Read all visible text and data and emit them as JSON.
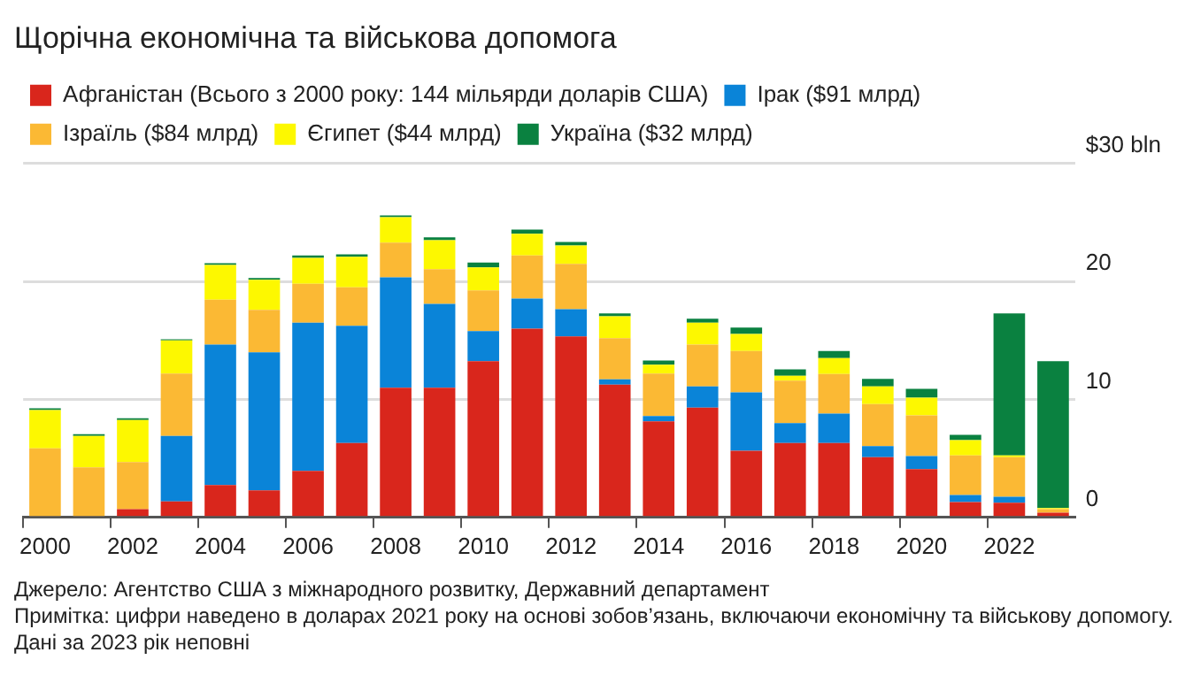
{
  "chart_data": {
    "type": "bar",
    "stacked": true,
    "title": "Щорічна економічна та військова допомога",
    "categories": [
      "2000",
      null,
      "2002",
      null,
      "2004",
      null,
      "2006",
      null,
      "2008",
      null,
      "2010",
      null,
      "2012",
      null,
      "2014",
      null,
      "2016",
      null,
      "2018",
      null,
      "2020",
      null,
      "2022",
      null
    ],
    "series": [
      {
        "name": "Афганістан (Всього з 2000 року: 144 мільярди доларів США)",
        "color": "#d9261c",
        "values": [
          0,
          0,
          0.7,
          1.35,
          2.75,
          2.3,
          3.95,
          6.3,
          11.0,
          11.0,
          13.25,
          16.0,
          15.35,
          11.25,
          8.15,
          9.3,
          5.65,
          6.3,
          6.3,
          5.1,
          4.1,
          1.3,
          1.25,
          0.4
        ]
      },
      {
        "name": "Ірак ($91 млрд)",
        "color": "#0a84d8",
        "values": [
          0,
          0,
          0,
          5.55,
          11.9,
          11.7,
          12.55,
          9.95,
          9.35,
          7.1,
          2.55,
          2.55,
          2.3,
          0.45,
          0.45,
          1.8,
          4.95,
          1.7,
          2.5,
          0.95,
          1.1,
          0.6,
          0.5,
          0
        ]
      },
      {
        "name": "Ізраїль ($84 млрд)",
        "color": "#fbb934",
        "values": [
          5.85,
          4.25,
          4.0,
          5.3,
          3.8,
          3.6,
          3.3,
          3.25,
          2.95,
          2.95,
          3.45,
          3.65,
          3.85,
          3.5,
          3.6,
          3.55,
          3.5,
          3.6,
          3.35,
          3.55,
          3.45,
          3.35,
          3.35,
          0.3
        ]
      },
      {
        "name": "Єгипет ($44 млрд)",
        "color": "#fdf800",
        "values": [
          3.25,
          2.65,
          3.55,
          2.8,
          2.95,
          2.55,
          2.2,
          2.6,
          2.15,
          2.45,
          1.95,
          1.85,
          1.55,
          1.85,
          0.75,
          1.85,
          1.45,
          0.4,
          1.35,
          1.5,
          1.5,
          1.3,
          0.15,
          0.1
        ]
      },
      {
        "name": "Україна ($32 млрд)",
        "color": "#0a8140",
        "values": [
          0.15,
          0.15,
          0.15,
          0.1,
          0.15,
          0.15,
          0.2,
          0.2,
          0.15,
          0.25,
          0.4,
          0.35,
          0.3,
          0.25,
          0.35,
          0.35,
          0.55,
          0.55,
          0.6,
          0.65,
          0.75,
          0.45,
          12.05,
          12.45
        ]
      }
    ],
    "ylim": [
      0,
      30
    ],
    "yticks": [
      0,
      10,
      20,
      {
        "value": 30,
        "label": "$30 bln"
      }
    ],
    "grid": "y",
    "legend": "top left",
    "annotations": [
      "Джерело: Агентство США з міжнародного розвитку, Державний департамент",
      "Примітка: цифри наведено в доларах 2021 року на основі зобов’язань, включаючи економічну та військову допомогу. Дані за 2023 рік неповні"
    ]
  }
}
